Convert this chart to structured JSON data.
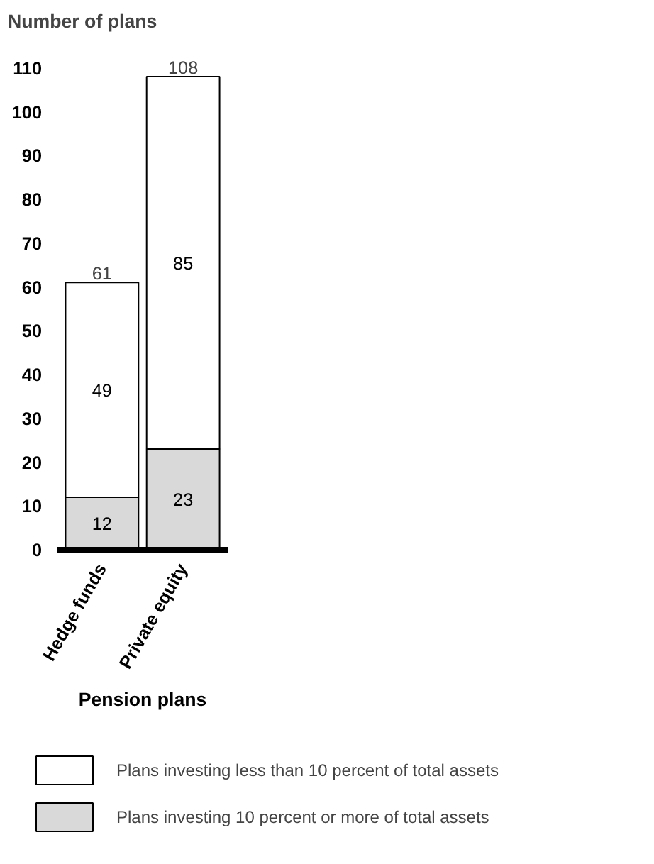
{
  "chart_data": {
    "type": "bar",
    "ylabel": "Number of plans",
    "xlabel": "Pension plans",
    "categories": [
      "Hedge funds",
      "Private equity"
    ],
    "series": [
      {
        "name": "Plans investing 10 percent or more of total assets",
        "color": "#d9d9d9",
        "values": [
          12,
          23
        ]
      },
      {
        "name": "Plans investing less than 10 percent of total assets",
        "color": "#ffffff",
        "values": [
          49,
          85
        ]
      }
    ],
    "stacked": true,
    "totals": [
      "61",
      "108"
    ],
    "data_labels": true,
    "ylim": [
      0,
      110
    ],
    "yticks": [
      0,
      10,
      20,
      30,
      40,
      50,
      60,
      70,
      80,
      90,
      100,
      110
    ],
    "grid": false,
    "legend": "bottom"
  }
}
